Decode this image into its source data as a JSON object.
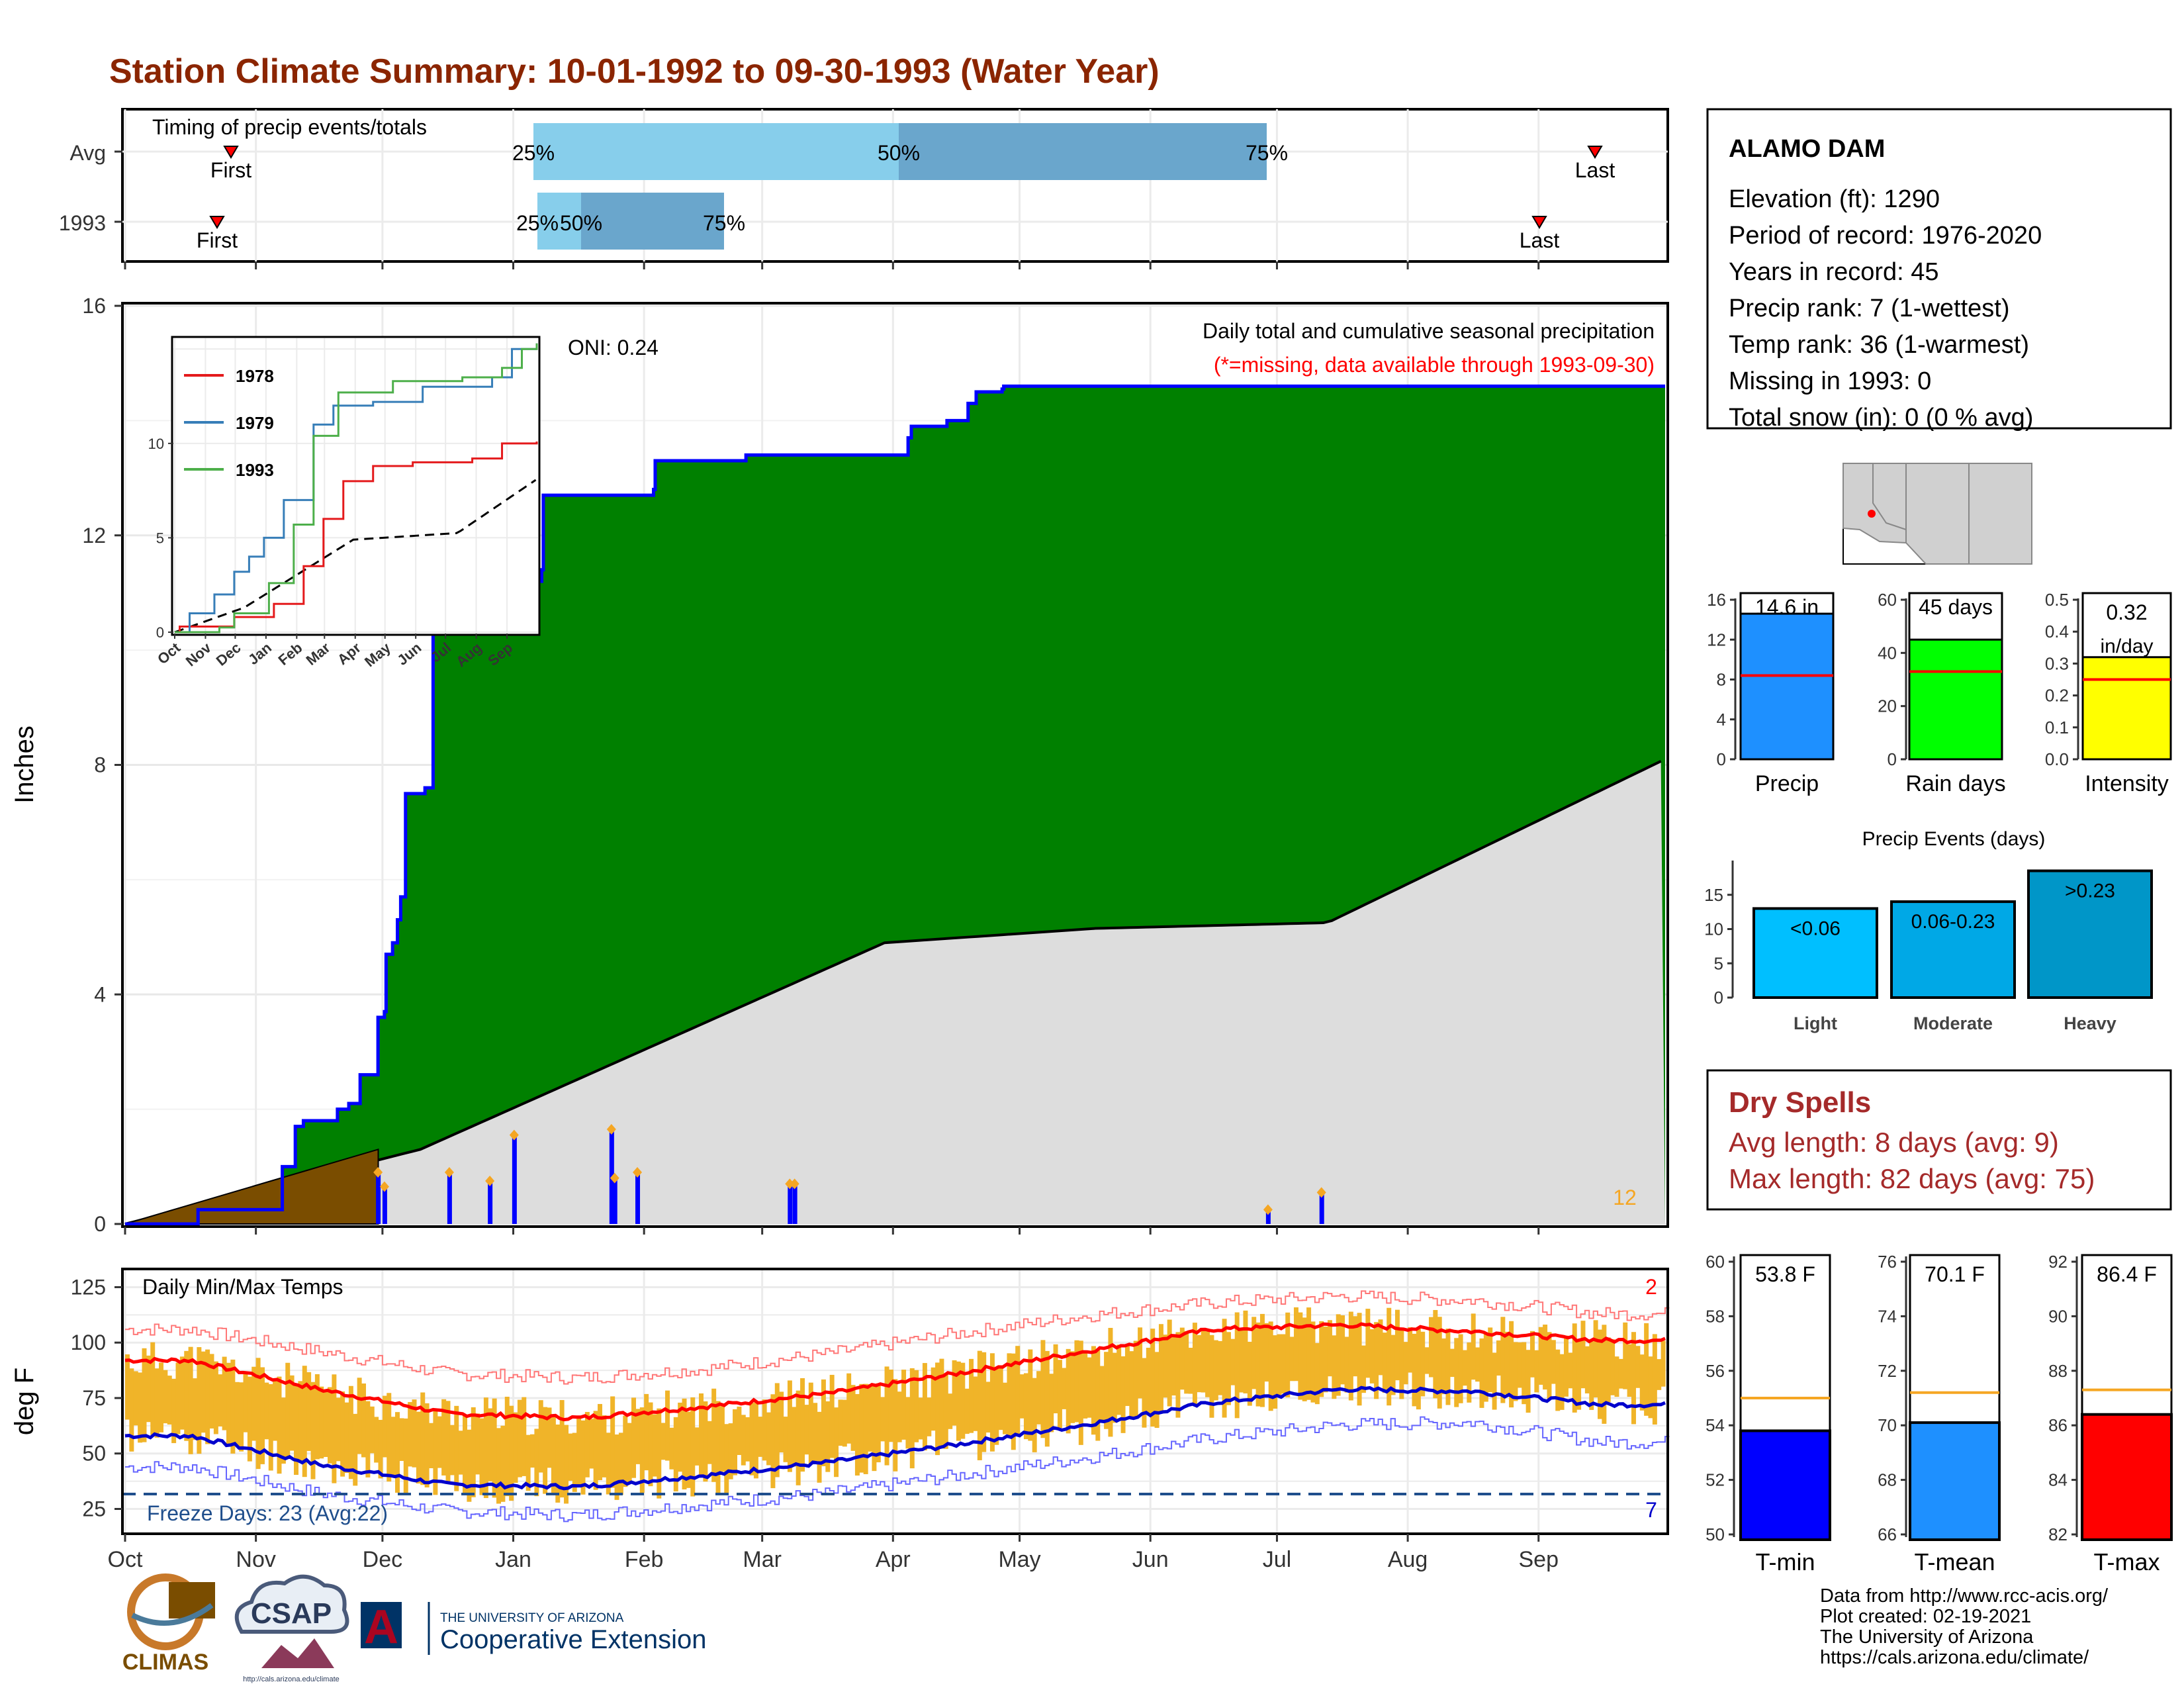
{
  "title": "Station Climate Summary: 10-01-1992 to 09-30-1993 (Water Year)",
  "colors": {
    "title": "#8b2500",
    "cum_precip": "#008000",
    "avg_cum": "#dddddd",
    "prior_month": "#7a4d00",
    "daily_bar": "#0000ff",
    "tmax": "#ff0000",
    "tmin": "#0000cc",
    "temp_range": "#f0b429",
    "dry_spell": "#a52a2a",
    "missing_note": "#ff0000"
  },
  "timing": {
    "label": "Timing of precip events/totals",
    "rows": [
      "Avg",
      "1993"
    ],
    "first_label": "First",
    "last_label": "Last",
    "avg": {
      "p25": "25%",
      "p50": "50%",
      "p75": "75%"
    },
    "y1993": {
      "p25": "25%",
      "p50": "50%",
      "p75": "75%"
    }
  },
  "main": {
    "ylabel": "Inches",
    "yticks": [
      "0",
      "4",
      "8",
      "12",
      "16"
    ],
    "oni": "ONI: 0.24",
    "header": "Daily total and cumulative seasonal precipitation",
    "missing_note": "(*=missing, data available through 1993-09-30)",
    "corner_count": "12"
  },
  "inset": {
    "legend": [
      "1978",
      "1979",
      "1993"
    ],
    "yticks": [
      "0",
      "5",
      "10"
    ],
    "xticks": [
      "Oct",
      "Nov",
      "Dec",
      "Jan",
      "Feb",
      "Mar",
      "Apr",
      "May",
      "Jun",
      "Jul",
      "Aug",
      "Sep"
    ]
  },
  "temps": {
    "label": "Daily Min/Max Temps",
    "ylabel": "deg F",
    "yticks": [
      "25",
      "50",
      "75",
      "100",
      "125"
    ],
    "freeze": "Freeze Days: 23 (Avg:22)",
    "top_count": "2",
    "bottom_count": "7",
    "months": [
      "Oct",
      "Nov",
      "Dec",
      "Jan",
      "Feb",
      "Mar",
      "Apr",
      "May",
      "Jun",
      "Jul",
      "Aug",
      "Sep"
    ]
  },
  "station": {
    "name": "ALAMO DAM",
    "lines": [
      "Elevation (ft): 1290",
      "Period of record: 1976-2020",
      "Years in record: 45",
      "Precip rank: 7 (1-wettest)",
      "Temp rank: 36 (1-warmest)",
      "Missing in 1993: 0",
      "Total snow (in): 0 (0 % avg)"
    ]
  },
  "summary_bars": [
    {
      "name": "Precip",
      "value_label": "14.6 in",
      "value": 14.6,
      "avg": 8.4,
      "ymax": 16,
      "yticks": [
        "0",
        "4",
        "8",
        "12",
        "16"
      ],
      "color": "#1e90ff"
    },
    {
      "name": "Rain days",
      "value_label": "45 days",
      "value": 45,
      "avg": 33,
      "ymax": 60,
      "yticks": [
        "0",
        "20",
        "40",
        "60"
      ],
      "color": "#00ff00"
    },
    {
      "name": "Intensity",
      "value_label": "0.32 in/day",
      "value": 0.32,
      "avg": 0.25,
      "ymax": 0.5,
      "yticks": [
        "0.0",
        "0.1",
        "0.2",
        "0.3",
        "0.4",
        "0.5"
      ],
      "color": "#ffff00"
    }
  ],
  "events": {
    "title": "Precip Events (days)",
    "yticks": [
      "0",
      "5",
      "10",
      "15"
    ],
    "bars": [
      {
        "name": "Light",
        "range": "<0.06",
        "value": 13,
        "color": "#00bfff"
      },
      {
        "name": "Moderate",
        "range": "0.06-0.23",
        "value": 14,
        "color": "#00a8e6"
      },
      {
        "name": "Heavy",
        "range": ">0.23",
        "value": 18.5,
        "color": "#0096c8"
      }
    ]
  },
  "dry_spells": {
    "title": "Dry Spells",
    "avg": "Avg length: 8 days (avg: 9)",
    "max": "Max length: 82 days (avg: 75)"
  },
  "temp_bars": [
    {
      "name": "T-min",
      "value_label": "53.8 F",
      "value": 53.8,
      "avg": 55.0,
      "min": 50,
      "max": 60,
      "yticks": [
        "50",
        "52",
        "54",
        "56",
        "58",
        "60"
      ],
      "color": "#0000ff"
    },
    {
      "name": "T-mean",
      "value_label": "70.1 F",
      "value": 70.1,
      "avg": 71.2,
      "min": 66,
      "max": 76,
      "yticks": [
        "66",
        "68",
        "70",
        "72",
        "74",
        "76"
      ],
      "color": "#1e90ff"
    },
    {
      "name": "T-max",
      "value_label": "86.4 F",
      "value": 86.4,
      "avg": 87.3,
      "min": 82,
      "max": 92,
      "yticks": [
        "82",
        "84",
        "86",
        "88",
        "90",
        "92"
      ],
      "color": "#ff0000"
    }
  ],
  "credits": [
    "Data from http://www.rcc-acis.org/",
    "Plot created: 02-19-2021",
    "The University of Arizona",
    "https://cals.arizona.edu/climate/"
  ],
  "logos": {
    "climas": "CLIMAS",
    "csap": "CSAP",
    "csap_url": "http://cals.arizona.edu/climate",
    "ua_top": "THE UNIVERSITY OF ARIZONA",
    "ua_bottom": "Cooperative Extension",
    "ua_letter": "A"
  },
  "chart_data": [
    {
      "type": "area",
      "title": "Daily total and cumulative seasonal precipitation",
      "ylabel": "Inches",
      "ylim": [
        0,
        16
      ],
      "x_unit": "day of water year",
      "series": [
        {
          "values_x": [
            0,
            45,
            96,
            97,
            105,
            110,
            131,
            138,
            145,
            156,
            160,
            161,
            165,
            168,
            170,
            173,
            179,
            185,
            190,
            235,
            257,
            258,
            326,
            327,
            382,
            383,
            480,
            483,
            485,
            507,
            520,
            525,
            541,
            542,
            731,
            787,
            950
          ],
          "cum_values": [
            0,
            0.25,
            0.25,
            1.0,
            1.7,
            1.8,
            2.0,
            2.1,
            2.6,
            3.6,
            3.7,
            4.7,
            4.9,
            5.3,
            5.7,
            7.5,
            7.5,
            7.6,
            10.4,
            11.2,
            11.4,
            12.7,
            12.8,
            13.3,
            13.3,
            13.4,
            13.4,
            13.7,
            13.9,
            14.0,
            14.3,
            14.5,
            14.55,
            14.6,
            14.6,
            14.6,
            14.6
          ]
        }
      ],
      "daily_events": [
        {
          "x": 156,
          "v": 0.9
        },
        {
          "x": 160,
          "v": 0.65
        },
        {
          "x": 200,
          "v": 0.9
        },
        {
          "x": 225,
          "v": 0.75
        },
        {
          "x": 240,
          "v": 1.55
        },
        {
          "x": 300,
          "v": 1.65
        },
        {
          "x": 302,
          "v": 0.8
        },
        {
          "x": 316,
          "v": 0.9
        },
        {
          "x": 410,
          "v": 0.7
        },
        {
          "x": 413,
          "v": 0.7
        },
        {
          "x": 705,
          "v": 0.25
        },
        {
          "x": 738,
          "v": 0.55
        }
      ]
    },
    {
      "type": "line",
      "title": "Daily Min/Max Temps",
      "ylabel": "deg F",
      "ylim": [
        20,
        130
      ],
      "x": [
        "Oct",
        "Nov",
        "Dec",
        "Jan",
        "Feb",
        "Mar",
        "Apr",
        "May",
        "Jun",
        "Jul",
        "Aug",
        "Sep"
      ],
      "series": [
        {
          "name": "avg max",
          "values": [
            92,
            79,
            68,
            66,
            71,
            77,
            86,
            96,
            106,
            108,
            105,
            101
          ]
        },
        {
          "name": "avg min",
          "values": [
            58,
            45,
            36,
            35,
            40,
            46,
            54,
            63,
            73,
            79,
            78,
            72
          ]
        },
        {
          "name": "record max",
          "values": [
            106,
            96,
            86,
            84,
            88,
            95,
            104,
            112,
            118,
            121,
            119,
            113
          ]
        },
        {
          "name": "record min",
          "values": [
            44,
            32,
            24,
            22,
            27,
            32,
            40,
            48,
            57,
            63,
            64,
            55
          ]
        }
      ]
    }
  ]
}
